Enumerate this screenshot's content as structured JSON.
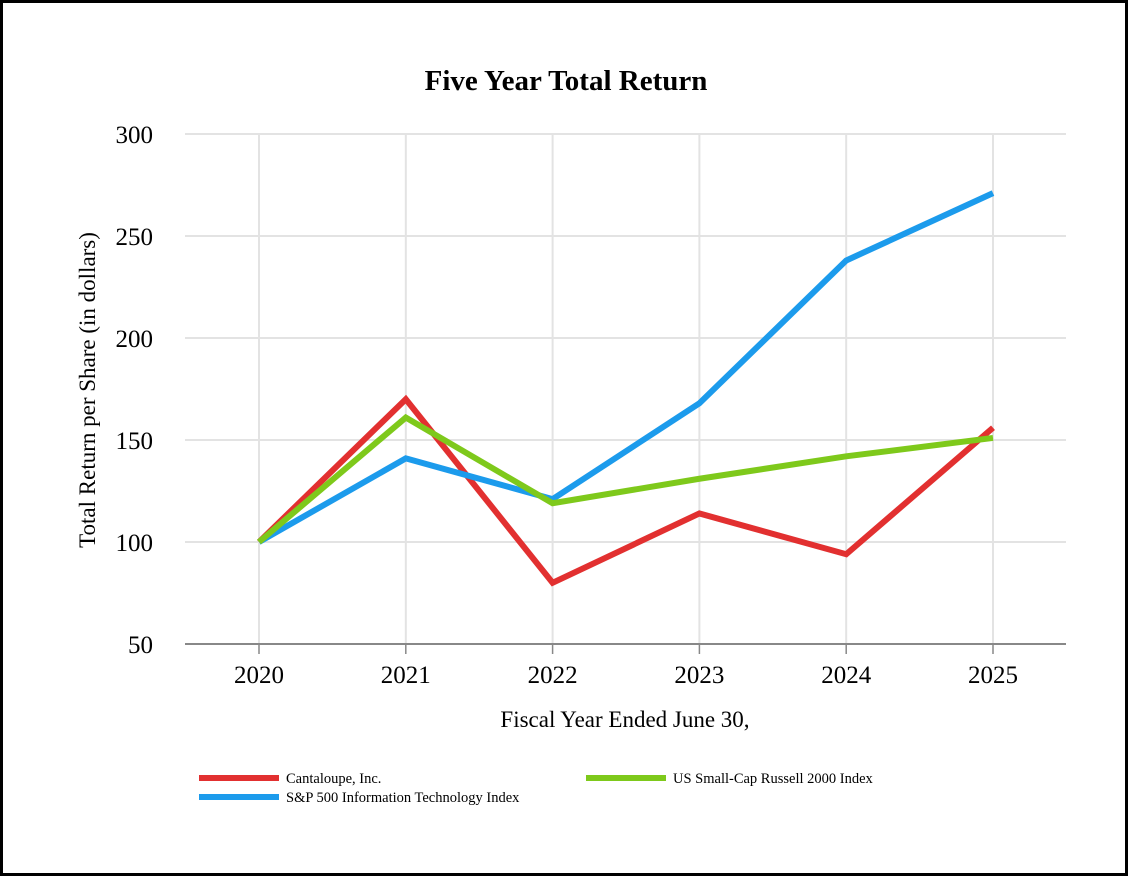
{
  "chart_data": {
    "type": "line",
    "title": "Five Year Total Return",
    "xlabel": "Fiscal Year Ended June 30,",
    "ylabel": "Total Return per Share (in dollars)",
    "categories": [
      "2020",
      "2021",
      "2022",
      "2023",
      "2024",
      "2025"
    ],
    "ylim": [
      50,
      300
    ],
    "yticks": [
      50,
      100,
      150,
      200,
      250,
      300
    ],
    "grid": true,
    "legend_position": "bottom",
    "series": [
      {
        "name": "Cantaloupe, Inc.",
        "color": "#e23030",
        "values": [
          100,
          170,
          80,
          114,
          94,
          156
        ]
      },
      {
        "name": "US Small-Cap Russell 2000 Index",
        "color": "#7ec91b",
        "values": [
          100,
          161,
          119,
          131,
          142,
          151
        ]
      },
      {
        "name": "S&P 500 Information Technology Index",
        "color": "#1c9bec",
        "values": [
          100,
          141,
          121,
          168,
          238,
          271
        ]
      }
    ]
  }
}
